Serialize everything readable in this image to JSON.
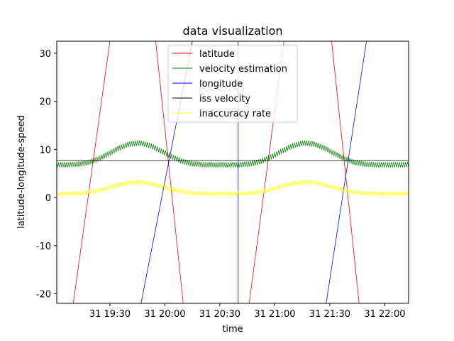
{
  "chart_data": {
    "type": "line",
    "title": "data visualization",
    "xlabel": "time",
    "ylabel": "latitude-longitude-speed",
    "xlim": [
      "31 19:01",
      "31 22:13"
    ],
    "ylim": [
      -22,
      32.5
    ],
    "x_ticks": [
      {
        "t": "31 19:30",
        "label": "31 19:30"
      },
      {
        "t": "31 20:00",
        "label": "31 20:00"
      },
      {
        "t": "31 20:30",
        "label": "31 20:30"
      },
      {
        "t": "31 21:00",
        "label": "31 21:00"
      },
      {
        "t": "31 21:30",
        "label": "31 21:30"
      },
      {
        "t": "31 22:00",
        "label": "31 22:00"
      }
    ],
    "y_ticks": [
      30,
      20,
      10,
      0,
      -10,
      -20
    ],
    "grid": false,
    "legend_position": "upper-center",
    "series": [
      {
        "name": "latitude",
        "color": "#ff0000",
        "segments": [
          [
            [
              "31 19:10",
              -22
            ],
            [
              "31 19:30",
              32.5
            ]
          ],
          [
            [
              "31 19:55",
              32.5
            ],
            [
              "31 20:10",
              -22
            ]
          ],
          [
            [
              "31 20:46",
              -22
            ],
            [
              "31 21:05",
              32.5
            ]
          ],
          [
            [
              "31 21:31",
              32.5
            ],
            [
              "31 21:46",
              -22
            ]
          ]
        ]
      },
      {
        "name": "velocity estimation",
        "color": "#008000",
        "style": "oscillating",
        "base": 6.8,
        "amplitude": 4.5,
        "period_minutes": 92,
        "peak_at": "31 19:45",
        "ripple": 1.1
      },
      {
        "name": "longitude",
        "color": "#0000ff",
        "segments": [
          [
            [
              "31 19:47",
              -22
            ],
            [
              "31 20:15",
              32.5
            ]
          ],
          [
            [
              "31 20:40",
              32.5
            ],
            [
              "31 20:40",
              -22
            ]
          ],
          [
            [
              "31 21:28",
              -22
            ],
            [
              "31 21:50",
              32.5
            ]
          ]
        ]
      },
      {
        "name": "iss velocity",
        "color": "#000000",
        "constant": 7.7
      },
      {
        "name": "inaccuracy rate",
        "color": "#ffff00",
        "style": "oscillating",
        "base": 0.8,
        "amplitude": 2.4,
        "period_minutes": 92,
        "peak_at": "31 19:45",
        "ripple": 0.9
      }
    ]
  }
}
